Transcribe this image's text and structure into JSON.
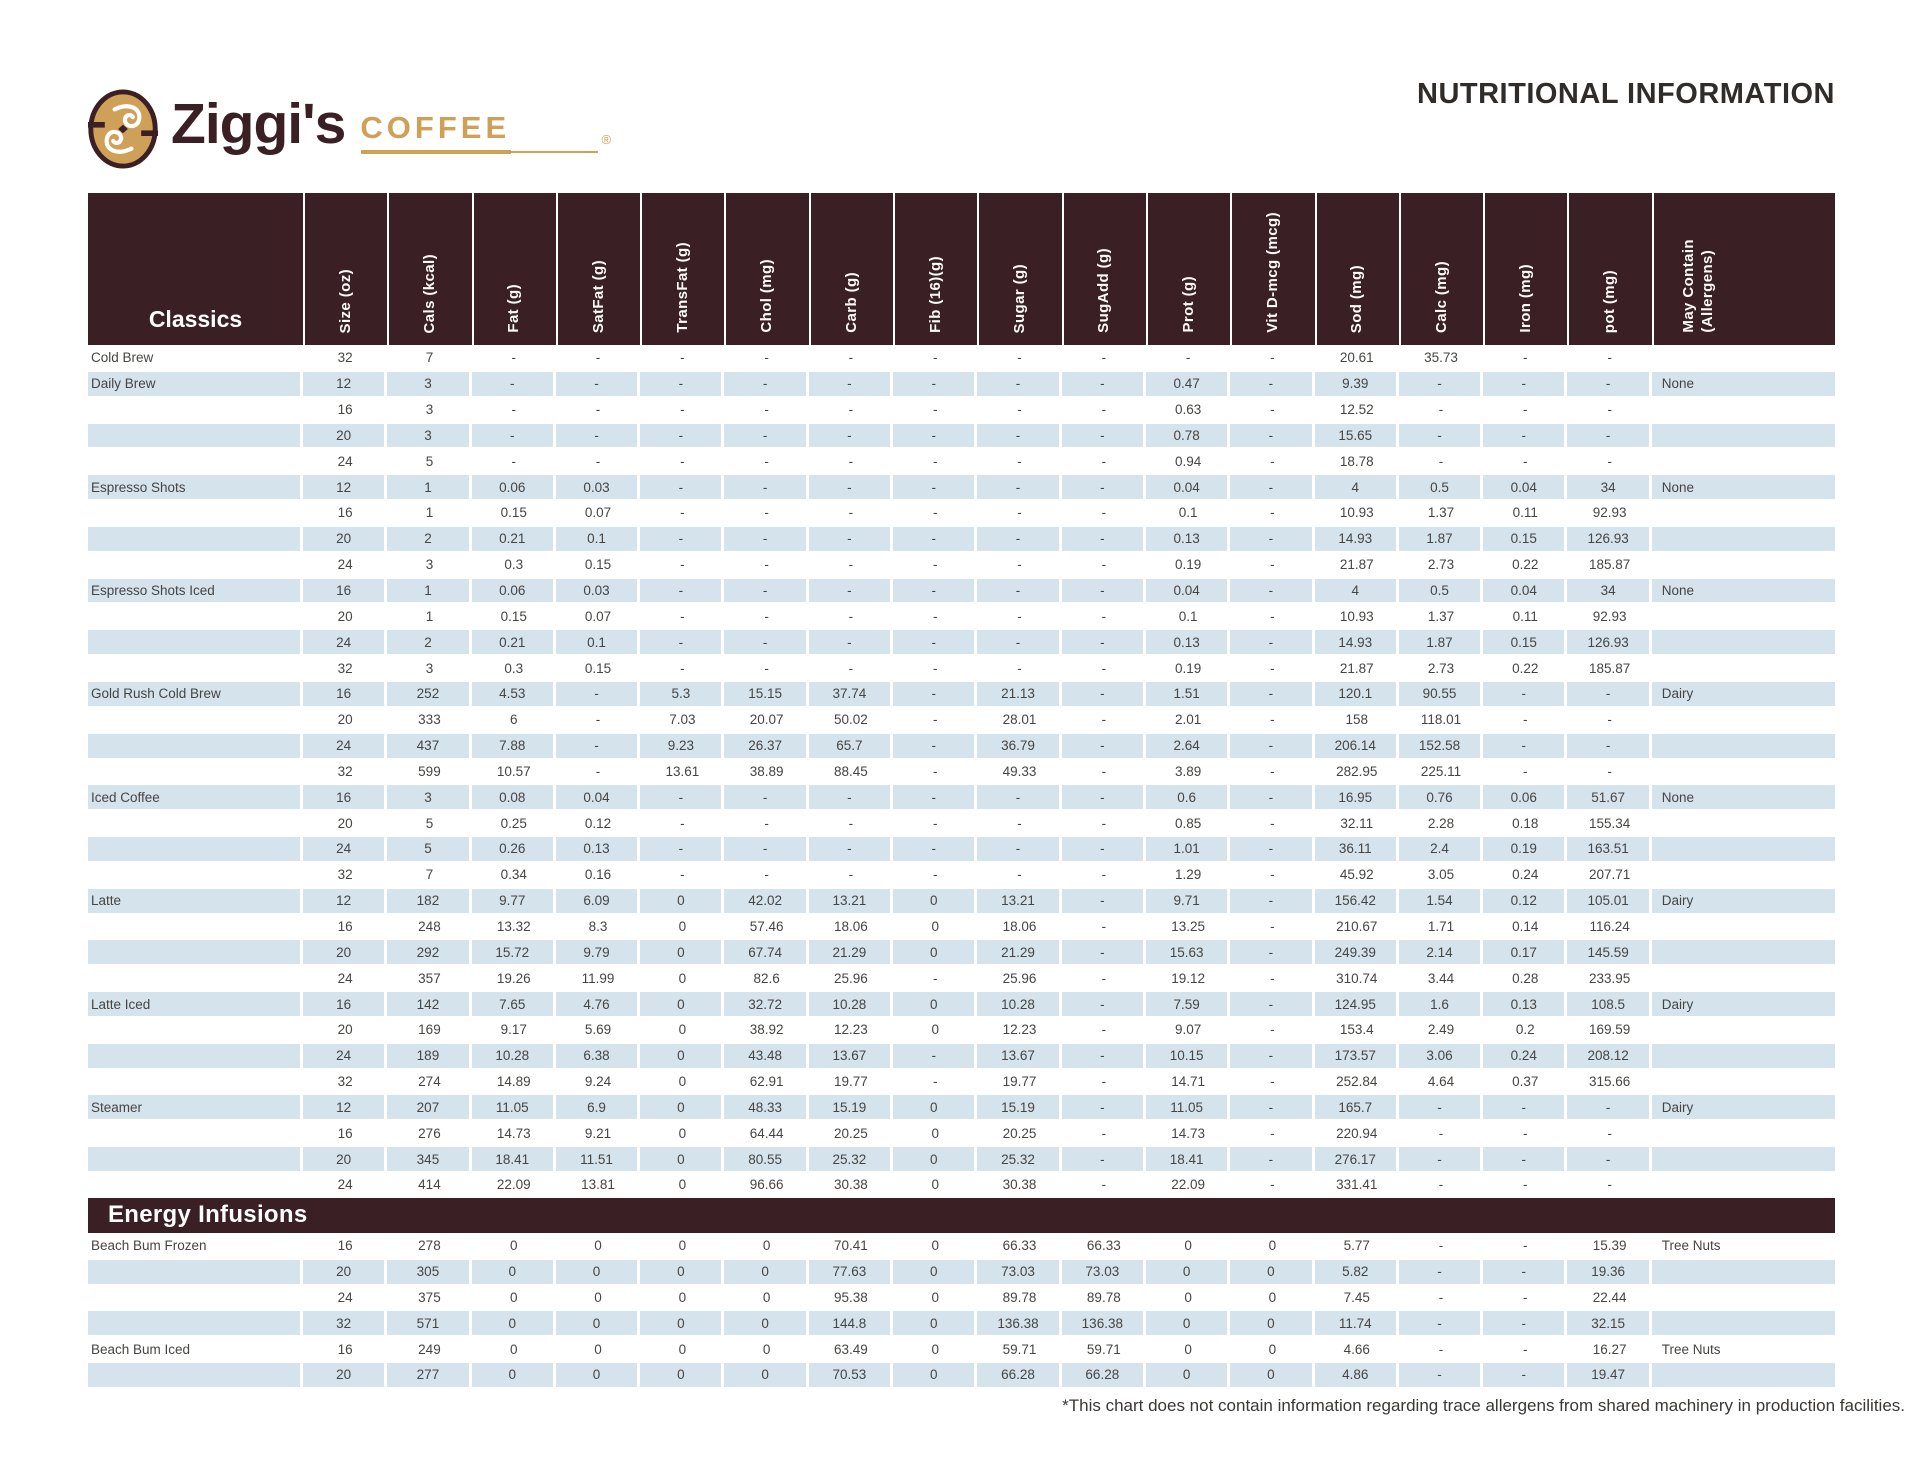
{
  "header": {
    "brand": {
      "name": "Ziggi's",
      "word": "COFFEE",
      "reg": "®"
    },
    "title": "NUTRITIONAL INFORMATION"
  },
  "colors": {
    "brand_brown": "#3A2024",
    "brand_tan": "#CFA057",
    "row_shade_blue": "#D4E3EC"
  },
  "table": {
    "columns": [
      "Size (oz)",
      "Cals (kcal)",
      "Fat (g)",
      "SatFat (g)",
      "TransFat (g)",
      "Chol (mg)",
      "Carb (g)",
      "Fib (16)(g)",
      "Sugar (g)",
      "SugAdd (g)",
      "Prot (g)",
      "Vit D-mcg (mcg)",
      "Sod (mg)",
      "Calc (mg)",
      "Iron (mg)",
      "pot (mg)",
      "May Contain\n(Allergens)"
    ],
    "sections": [
      {
        "label": "Classics",
        "bar": false,
        "rows": [
          {
            "item": "Cold Brew",
            "values": [
              "32",
              "7",
              "-",
              "-",
              "-",
              "-",
              "-",
              "-",
              "-",
              "-",
              "-",
              "-",
              "20.61",
              "35.73",
              "-",
              "-"
            ],
            "allergen": ""
          },
          {
            "item": "Daily Brew",
            "values": [
              "12",
              "3",
              "-",
              "-",
              "-",
              "-",
              "-",
              "-",
              "-",
              "-",
              "0.47",
              "-",
              "9.39",
              "-",
              "-",
              "-"
            ],
            "allergen": "None"
          },
          {
            "item": "",
            "values": [
              "16",
              "3",
              "-",
              "-",
              "-",
              "-",
              "-",
              "-",
              "-",
              "-",
              "0.63",
              "-",
              "12.52",
              "-",
              "-",
              "-"
            ],
            "allergen": ""
          },
          {
            "item": "",
            "values": [
              "20",
              "3",
              "-",
              "-",
              "-",
              "-",
              "-",
              "-",
              "-",
              "-",
              "0.78",
              "-",
              "15.65",
              "-",
              "-",
              "-"
            ],
            "allergen": ""
          },
          {
            "item": "",
            "values": [
              "24",
              "5",
              "-",
              "-",
              "-",
              "-",
              "-",
              "-",
              "-",
              "-",
              "0.94",
              "-",
              "18.78",
              "-",
              "-",
              "-"
            ],
            "allergen": ""
          },
          {
            "item": "Espresso Shots",
            "values": [
              "12",
              "1",
              "0.06",
              "0.03",
              "-",
              "-",
              "-",
              "-",
              "-",
              "-",
              "0.04",
              "-",
              "4",
              "0.5",
              "0.04",
              "34"
            ],
            "allergen": "None"
          },
          {
            "item": "",
            "values": [
              "16",
              "1",
              "0.15",
              "0.07",
              "-",
              "-",
              "-",
              "-",
              "-",
              "-",
              "0.1",
              "-",
              "10.93",
              "1.37",
              "0.11",
              "92.93"
            ],
            "allergen": ""
          },
          {
            "item": "",
            "values": [
              "20",
              "2",
              "0.21",
              "0.1",
              "-",
              "-",
              "-",
              "-",
              "-",
              "-",
              "0.13",
              "-",
              "14.93",
              "1.87",
              "0.15",
              "126.93"
            ],
            "allergen": ""
          },
          {
            "item": "",
            "values": [
              "24",
              "3",
              "0.3",
              "0.15",
              "-",
              "-",
              "-",
              "-",
              "-",
              "-",
              "0.19",
              "-",
              "21.87",
              "2.73",
              "0.22",
              "185.87"
            ],
            "allergen": ""
          },
          {
            "item": "Espresso Shots Iced",
            "values": [
              "16",
              "1",
              "0.06",
              "0.03",
              "-",
              "-",
              "-",
              "-",
              "-",
              "-",
              "0.04",
              "-",
              "4",
              "0.5",
              "0.04",
              "34"
            ],
            "allergen": "None"
          },
          {
            "item": "",
            "values": [
              "20",
              "1",
              "0.15",
              "0.07",
              "-",
              "-",
              "-",
              "-",
              "-",
              "-",
              "0.1",
              "-",
              "10.93",
              "1.37",
              "0.11",
              "92.93"
            ],
            "allergen": ""
          },
          {
            "item": "",
            "values": [
              "24",
              "2",
              "0.21",
              "0.1",
              "-",
              "-",
              "-",
              "-",
              "-",
              "-",
              "0.13",
              "-",
              "14.93",
              "1.87",
              "0.15",
              "126.93"
            ],
            "allergen": ""
          },
          {
            "item": "",
            "values": [
              "32",
              "3",
              "0.3",
              "0.15",
              "-",
              "-",
              "-",
              "-",
              "-",
              "-",
              "0.19",
              "-",
              "21.87",
              "2.73",
              "0.22",
              "185.87"
            ],
            "allergen": ""
          },
          {
            "item": "Gold Rush Cold Brew",
            "values": [
              "16",
              "252",
              "4.53",
              "-",
              "5.3",
              "15.15",
              "37.74",
              "-",
              "21.13",
              "-",
              "1.51",
              "-",
              "120.1",
              "90.55",
              "-",
              "-"
            ],
            "allergen": "Dairy"
          },
          {
            "item": "",
            "values": [
              "20",
              "333",
              "6",
              "-",
              "7.03",
              "20.07",
              "50.02",
              "-",
              "28.01",
              "-",
              "2.01",
              "-",
              "158",
              "118.01",
              "-",
              "-"
            ],
            "allergen": ""
          },
          {
            "item": "",
            "values": [
              "24",
              "437",
              "7.88",
              "-",
              "9.23",
              "26.37",
              "65.7",
              "-",
              "36.79",
              "-",
              "2.64",
              "-",
              "206.14",
              "152.58",
              "-",
              "-"
            ],
            "allergen": ""
          },
          {
            "item": "",
            "values": [
              "32",
              "599",
              "10.57",
              "-",
              "13.61",
              "38.89",
              "88.45",
              "-",
              "49.33",
              "-",
              "3.89",
              "-",
              "282.95",
              "225.11",
              "-",
              "-"
            ],
            "allergen": ""
          },
          {
            "item": "Iced Coffee",
            "values": [
              "16",
              "3",
              "0.08",
              "0.04",
              "-",
              "-",
              "-",
              "-",
              "-",
              "-",
              "0.6",
              "-",
              "16.95",
              "0.76",
              "0.06",
              "51.67"
            ],
            "allergen": "None"
          },
          {
            "item": "",
            "values": [
              "20",
              "5",
              "0.25",
              "0.12",
              "-",
              "-",
              "-",
              "-",
              "-",
              "-",
              "0.85",
              "-",
              "32.11",
              "2.28",
              "0.18",
              "155.34"
            ],
            "allergen": ""
          },
          {
            "item": "",
            "values": [
              "24",
              "5",
              "0.26",
              "0.13",
              "-",
              "-",
              "-",
              "-",
              "-",
              "-",
              "1.01",
              "-",
              "36.11",
              "2.4",
              "0.19",
              "163.51"
            ],
            "allergen": ""
          },
          {
            "item": "",
            "values": [
              "32",
              "7",
              "0.34",
              "0.16",
              "-",
              "-",
              "-",
              "-",
              "-",
              "-",
              "1.29",
              "-",
              "45.92",
              "3.05",
              "0.24",
              "207.71"
            ],
            "allergen": ""
          },
          {
            "item": "Latte",
            "values": [
              "12",
              "182",
              "9.77",
              "6.09",
              "0",
              "42.02",
              "13.21",
              "0",
              "13.21",
              "-",
              "9.71",
              "-",
              "156.42",
              "1.54",
              "0.12",
              "105.01"
            ],
            "allergen": "Dairy"
          },
          {
            "item": "",
            "values": [
              "16",
              "248",
              "13.32",
              "8.3",
              "0",
              "57.46",
              "18.06",
              "0",
              "18.06",
              "-",
              "13.25",
              "-",
              "210.67",
              "1.71",
              "0.14",
              "116.24"
            ],
            "allergen": ""
          },
          {
            "item": "",
            "values": [
              "20",
              "292",
              "15.72",
              "9.79",
              "0",
              "67.74",
              "21.29",
              "0",
              "21.29",
              "-",
              "15.63",
              "-",
              "249.39",
              "2.14",
              "0.17",
              "145.59"
            ],
            "allergen": ""
          },
          {
            "item": "",
            "values": [
              "24",
              "357",
              "19.26",
              "11.99",
              "0",
              "82.6",
              "25.96",
              "-",
              "25.96",
              "-",
              "19.12",
              "-",
              "310.74",
              "3.44",
              "0.28",
              "233.95"
            ],
            "allergen": ""
          },
          {
            "item": "Latte Iced",
            "values": [
              "16",
              "142",
              "7.65",
              "4.76",
              "0",
              "32.72",
              "10.28",
              "0",
              "10.28",
              "-",
              "7.59",
              "-",
              "124.95",
              "1.6",
              "0.13",
              "108.5"
            ],
            "allergen": "Dairy"
          },
          {
            "item": "",
            "values": [
              "20",
              "169",
              "9.17",
              "5.69",
              "0",
              "38.92",
              "12.23",
              "0",
              "12.23",
              "-",
              "9.07",
              "-",
              "153.4",
              "2.49",
              "0.2",
              "169.59"
            ],
            "allergen": ""
          },
          {
            "item": "",
            "values": [
              "24",
              "189",
              "10.28",
              "6.38",
              "0",
              "43.48",
              "13.67",
              "-",
              "13.67",
              "-",
              "10.15",
              "-",
              "173.57",
              "3.06",
              "0.24",
              "208.12"
            ],
            "allergen": ""
          },
          {
            "item": "",
            "values": [
              "32",
              "274",
              "14.89",
              "9.24",
              "0",
              "62.91",
              "19.77",
              "-",
              "19.77",
              "-",
              "14.71",
              "-",
              "252.84",
              "4.64",
              "0.37",
              "315.66"
            ],
            "allergen": ""
          },
          {
            "item": "Steamer",
            "values": [
              "12",
              "207",
              "11.05",
              "6.9",
              "0",
              "48.33",
              "15.19",
              "0",
              "15.19",
              "-",
              "11.05",
              "-",
              "165.7",
              "-",
              "-",
              "-"
            ],
            "allergen": "Dairy"
          },
          {
            "item": "",
            "values": [
              "16",
              "276",
              "14.73",
              "9.21",
              "0",
              "64.44",
              "20.25",
              "0",
              "20.25",
              "-",
              "14.73",
              "-",
              "220.94",
              "-",
              "-",
              "-"
            ],
            "allergen": ""
          },
          {
            "item": "",
            "values": [
              "20",
              "345",
              "18.41",
              "11.51",
              "0",
              "80.55",
              "25.32",
              "0",
              "25.32",
              "-",
              "18.41",
              "-",
              "276.17",
              "-",
              "-",
              "-"
            ],
            "allergen": ""
          },
          {
            "item": "",
            "values": [
              "24",
              "414",
              "22.09",
              "13.81",
              "0",
              "96.66",
              "30.38",
              "0",
              "30.38",
              "-",
              "22.09",
              "-",
              "331.41",
              "-",
              "-",
              "-"
            ],
            "allergen": ""
          }
        ]
      },
      {
        "label": "Energy Infusions",
        "bar": true,
        "rows": [
          {
            "item": "Beach Bum Frozen",
            "values": [
              "16",
              "278",
              "0",
              "0",
              "0",
              "0",
              "70.41",
              "0",
              "66.33",
              "66.33",
              "0",
              "0",
              "5.77",
              "-",
              "-",
              "15.39"
            ],
            "allergen": "Tree Nuts"
          },
          {
            "item": "",
            "values": [
              "20",
              "305",
              "0",
              "0",
              "0",
              "0",
              "77.63",
              "0",
              "73.03",
              "73.03",
              "0",
              "0",
              "5.82",
              "-",
              "-",
              "19.36"
            ],
            "allergen": ""
          },
          {
            "item": "",
            "values": [
              "24",
              "375",
              "0",
              "0",
              "0",
              "0",
              "95.38",
              "0",
              "89.78",
              "89.78",
              "0",
              "0",
              "7.45",
              "-",
              "-",
              "22.44"
            ],
            "allergen": ""
          },
          {
            "item": "",
            "values": [
              "32",
              "571",
              "0",
              "0",
              "0",
              "0",
              "144.8",
              "0",
              "136.38",
              "136.38",
              "0",
              "0",
              "11.74",
              "-",
              "-",
              "32.15"
            ],
            "allergen": ""
          },
          {
            "item": "Beach Bum Iced",
            "values": [
              "16",
              "249",
              "0",
              "0",
              "0",
              "0",
              "63.49",
              "0",
              "59.71",
              "59.71",
              "0",
              "0",
              "4.66",
              "-",
              "-",
              "16.27"
            ],
            "allergen": "Tree Nuts"
          },
          {
            "item": "",
            "values": [
              "20",
              "277",
              "0",
              "0",
              "0",
              "0",
              "70.53",
              "0",
              "66.28",
              "66.28",
              "0",
              "0",
              "4.86",
              "-",
              "-",
              "19.47"
            ],
            "allergen": ""
          }
        ]
      }
    ]
  },
  "footnote": "*This chart does not contain information regarding trace allergens from shared machinery in production facilities."
}
